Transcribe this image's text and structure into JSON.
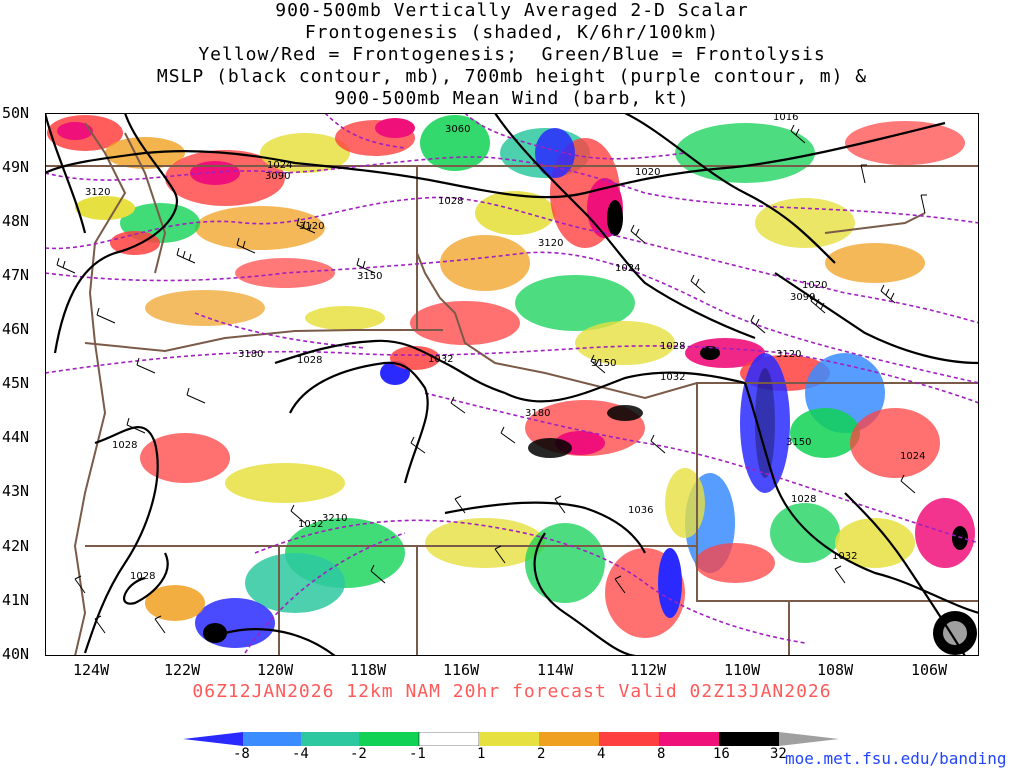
{
  "title": {
    "line1": "900-500mb Vertically Averaged 2-D Scalar",
    "line2": "Frontogenesis (shaded, K/6hr/100km)",
    "line3": "Yellow/Red = Frontogenesis;  Green/Blue = Frontolysis",
    "line4": "MSLP (black contour, mb), 700mb height (purple contour, m) &",
    "line5": "900-500mb Mean Wind (barb, kt)"
  },
  "run_info": "06Z12JAN2026 12km NAM 20hr forecast Valid 02Z13JAN2026",
  "website": "moe.met.fsu.edu/banding",
  "lat_labels": [
    "50N",
    "49N",
    "48N",
    "47N",
    "46N",
    "45N",
    "44N",
    "43N",
    "42N",
    "41N",
    "40N"
  ],
  "lon_labels": [
    "124W",
    "122W",
    "120W",
    "118W",
    "116W",
    "114W",
    "112W",
    "110W",
    "108W",
    "106W"
  ],
  "colorbar": {
    "labels": [
      "-8",
      "-4",
      "-2",
      "-1",
      "1",
      "2",
      "4",
      "8",
      "16",
      "32"
    ],
    "colors": [
      "#2a2aff",
      "#3a8cff",
      "#2ec8a0",
      "#11d255",
      "#ffffff",
      "#e6e040",
      "#f0a020",
      "#ff4040",
      "#f0107a",
      "#000000",
      "#a0a0a0"
    ]
  },
  "mslp_labels": [
    "1016",
    "1020",
    "1020",
    "1024",
    "1024",
    "1024",
    "1028",
    "1028",
    "1028",
    "1028",
    "1028",
    "1028",
    "1032",
    "1032",
    "1032",
    "1032",
    "1036"
  ],
  "height_labels": [
    "3060",
    "3090",
    "3090",
    "3120",
    "3120",
    "3120",
    "3120",
    "3150",
    "3150",
    "3150",
    "3180",
    "3180",
    "3210"
  ],
  "colors": {
    "mslp_contour": "#000000",
    "height_contour": "#a020c0",
    "border": "#7a5a48",
    "run_info": "#ff5a5a",
    "website": "#2244ff"
  }
}
